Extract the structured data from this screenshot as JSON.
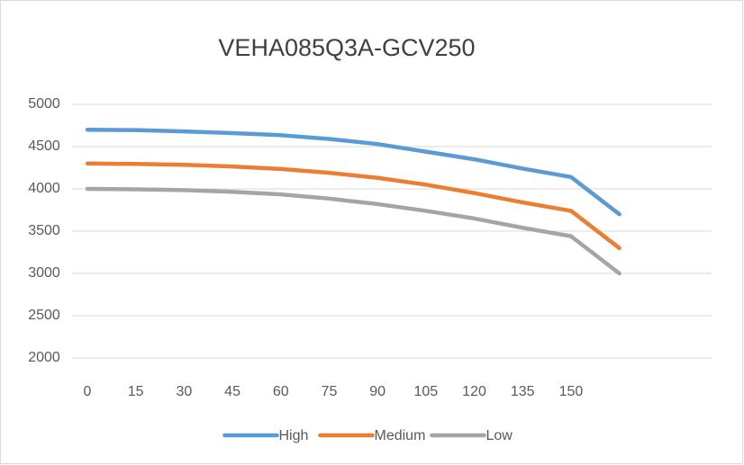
{
  "chart_data": {
    "type": "line",
    "title": "VEHA085Q3A-GCV250",
    "categories": [
      0,
      15,
      30,
      45,
      60,
      75,
      90,
      105,
      120,
      135,
      150,
      null,
      null,
      null
    ],
    "series": [
      {
        "name": "High",
        "color": "#5b9bd5",
        "values": [
          4700,
          4695,
          4680,
          4660,
          4635,
          4590,
          4530,
          4440,
          4350,
          4240,
          4140,
          3700,
          null,
          null
        ]
      },
      {
        "name": "Medium",
        "color": "#ed7d31",
        "values": [
          4300,
          4295,
          4285,
          4265,
          4235,
          4190,
          4130,
          4050,
          3950,
          3840,
          3740,
          3300,
          null,
          null
        ]
      },
      {
        "name": "Low",
        "color": "#a5a5a5",
        "values": [
          4000,
          3995,
          3985,
          3965,
          3935,
          3885,
          3820,
          3740,
          3650,
          3540,
          3440,
          3000,
          null,
          null
        ]
      }
    ],
    "ylim": [
      2000,
      5000
    ],
    "yticks": [
      2000,
      2500,
      3000,
      3500,
      4000,
      4500,
      5000
    ],
    "grid": true,
    "legend": "bottom"
  }
}
